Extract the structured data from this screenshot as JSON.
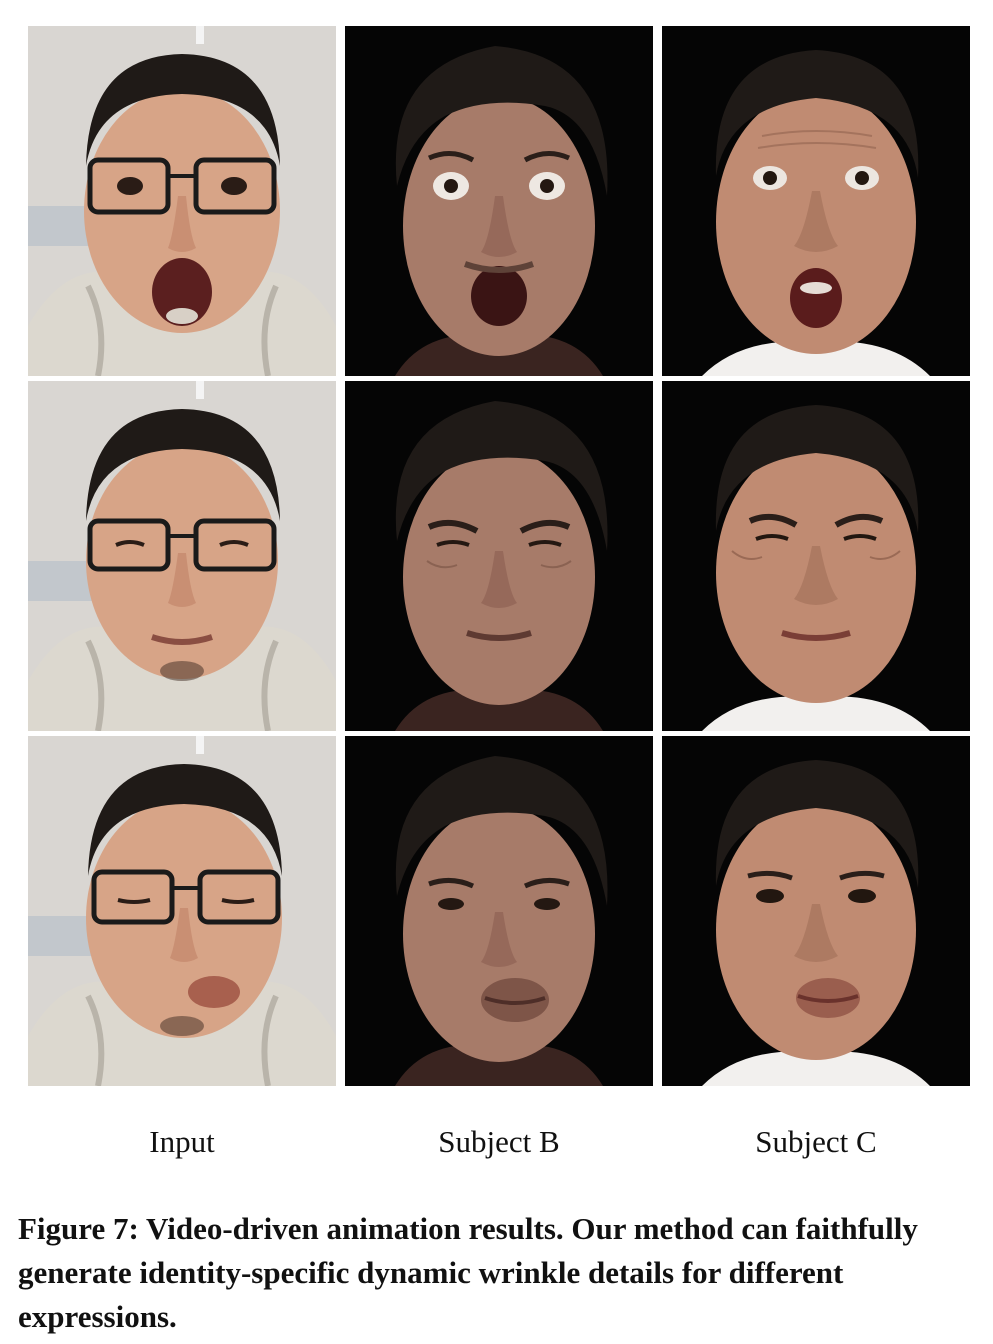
{
  "figure": {
    "columns": [
      {
        "label": "Input"
      },
      {
        "label": "Subject B"
      },
      {
        "label": "Subject C"
      }
    ],
    "rows": [
      {
        "expression": "surprise"
      },
      {
        "expression": "frown-squint"
      },
      {
        "expression": "lip-pout"
      }
    ],
    "caption": "Figure 7: Video-driven animation results. Our method can faithfully generate identity-specific dynamic wrinkle details for different expressions."
  },
  "colors": {
    "input_background": "#d9d6d2",
    "render_background": "#050505",
    "hair": "#1f1a17",
    "skin_input": "#d7a487",
    "skin_b": "#a77b69",
    "skin_c": "#c08b72",
    "hoodie": "#dcd8cf",
    "glasses": "#1a1a1a"
  }
}
